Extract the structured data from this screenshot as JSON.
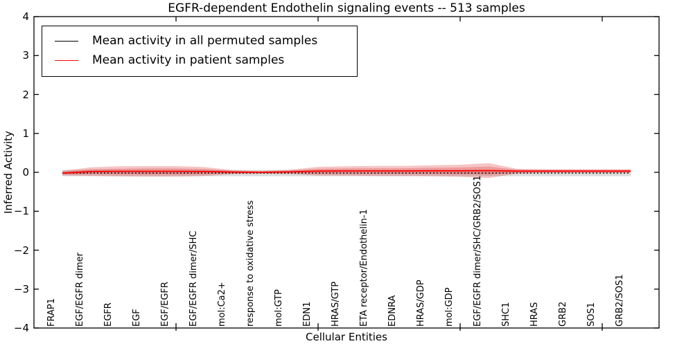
{
  "title": "EGFR-dependent Endothelin signaling events -- 513 samples",
  "axes": {
    "ylabel": "Inferred Activity",
    "xlabel": "Cellular Entities",
    "ytick_values": [
      4,
      3,
      2,
      1,
      0,
      -1,
      -2,
      -3,
      -4
    ]
  },
  "legend": {
    "items": [
      {
        "label": "Mean activity in all permuted samples",
        "color": "#000000"
      },
      {
        "label": "Mean activity in patient samples",
        "color": "#ff0000"
      }
    ]
  },
  "colors": {
    "frame": "#000000",
    "permuted_line": "#000000",
    "patient_line": "#ff0000",
    "patient_band_fill": "rgba(222,45,45,0.28)",
    "permuted_band_fill": "rgba(130,130,130,0.28)"
  },
  "chart_data": {
    "type": "line",
    "title": "EGFR-dependent Endothelin signaling events -- 513 samples",
    "xlabel": "Cellular Entities",
    "ylabel": "Inferred Activity",
    "ylim": [
      -4,
      4
    ],
    "xlim": [
      0,
      22
    ],
    "grid": false,
    "legend_position": "upper left",
    "x_major_ticks": [
      5,
      10,
      15,
      20
    ],
    "categories": [
      "FRAP1",
      "EGF/EGFR dimer",
      "EGFR",
      "EGF",
      "EGF/EGFR",
      "EGF/EGFR dimer/SHC",
      "mol:Ca2+",
      "response to oxidative stress",
      "mol:GTP",
      "EDN1",
      "HRAS/GTP",
      "ETA receptor/Endothelin-1",
      "EDNRA",
      "HRAS/GDP",
      "mol:GDP",
      "EGF/EGFR dimer/SHC/GRB2/SOS1",
      "SHC1",
      "HRAS",
      "GRB2",
      "SOS1",
      "GRB2/SOS1"
    ],
    "series": [
      {
        "name": "Mean activity in all permuted samples",
        "style": "dotted",
        "values": [
          -0.02,
          -0.02,
          -0.02,
          -0.02,
          -0.02,
          -0.02,
          -0.02,
          -0.02,
          -0.02,
          -0.02,
          -0.02,
          -0.02,
          -0.02,
          -0.02,
          -0.02,
          -0.02,
          -0.02,
          -0.02,
          -0.02,
          -0.02,
          -0.02
        ]
      },
      {
        "name": "Mean activity in patient samples",
        "style": "solid",
        "values": [
          -0.02,
          0.02,
          0.025,
          0.025,
          0.025,
          0.02,
          0.005,
          0.0,
          0.01,
          0.03,
          0.035,
          0.035,
          0.035,
          0.04,
          0.04,
          0.045,
          0.03,
          0.03,
          0.03,
          0.03,
          0.03
        ]
      }
    ],
    "bands": [
      {
        "name": "permuted-std-band",
        "center_series": 0,
        "half_widths": [
          0.08,
          0.08,
          0.08,
          0.08,
          0.08,
          0.08,
          0.08,
          0.08,
          0.08,
          0.08,
          0.08,
          0.08,
          0.08,
          0.08,
          0.08,
          0.08,
          0.08,
          0.08,
          0.08,
          0.08,
          0.08
        ]
      },
      {
        "name": "patient-std-band-outer",
        "center_series": 1,
        "half_widths": [
          0.06,
          0.11,
          0.13,
          0.135,
          0.135,
          0.115,
          0.05,
          0.035,
          0.055,
          0.11,
          0.12,
          0.13,
          0.13,
          0.14,
          0.155,
          0.19,
          0.06,
          0.05,
          0.05,
          0.05,
          0.05
        ]
      },
      {
        "name": "patient-std-band-inner",
        "center_series": 1,
        "half_widths": [
          0.035,
          0.06,
          0.07,
          0.075,
          0.075,
          0.065,
          0.028,
          0.02,
          0.03,
          0.06,
          0.066,
          0.07,
          0.07,
          0.076,
          0.085,
          0.105,
          0.035,
          0.028,
          0.028,
          0.028,
          0.028
        ]
      }
    ]
  }
}
